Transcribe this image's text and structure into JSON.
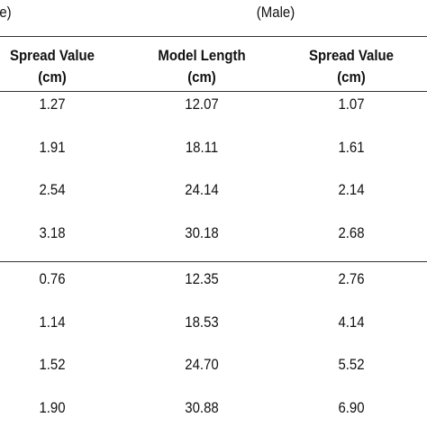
{
  "table": {
    "top_left": "e)",
    "group_title": "(Male)",
    "columns": [
      {
        "name": "Spread Value",
        "unit": "(cm)"
      },
      {
        "name": "Model Length",
        "unit": "(cm)"
      },
      {
        "name": "Spread Value",
        "unit": "(cm)"
      }
    ],
    "sections": [
      {
        "rows": [
          [
            "1.27",
            "12.07",
            "1.07"
          ],
          [
            "1.91",
            "18.11",
            "1.61"
          ],
          [
            "2.54",
            "24.14",
            "2.14"
          ],
          [
            "3.18",
            "30.18",
            "2.68"
          ]
        ]
      },
      {
        "rows": [
          [
            "0.76",
            "12.35",
            "2.76"
          ],
          [
            "1.14",
            "18.53",
            "4.14"
          ],
          [
            "1.52",
            "24.70",
            "5.52"
          ],
          [
            "1.90",
            "30.88",
            "6.90"
          ]
        ]
      }
    ]
  }
}
